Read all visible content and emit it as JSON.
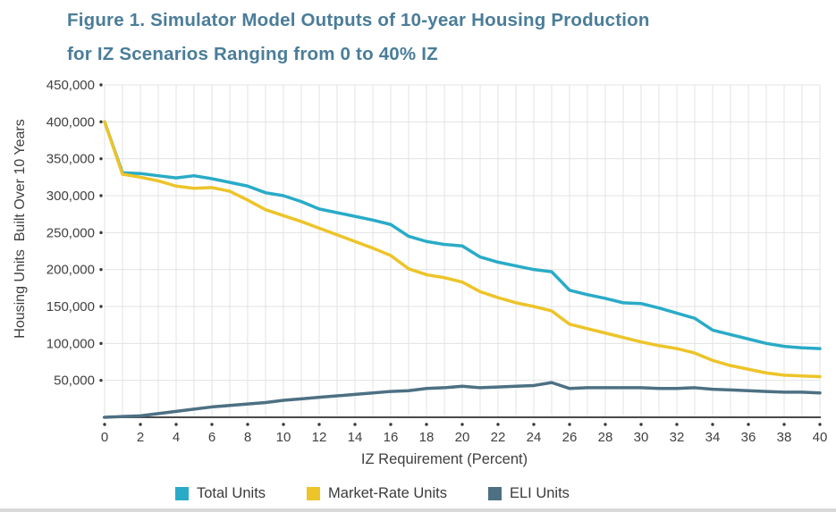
{
  "figure": {
    "title_line1": "Figure 1. Simulator Model Outputs of 10-year Housing Production",
    "title_line2": "for IZ Scenarios Ranging from 0 to 40% IZ"
  },
  "colors": {
    "title": "#4A7D99",
    "axis_text": "#404040",
    "gridline": "#E3E3E3",
    "axis_line": "#4A4A4A",
    "tick_dot": "#3A3A3A"
  },
  "chart_data": {
    "type": "line",
    "title": "Figure 1. Simulator Model Outputs of 10-year Housing Production for IZ Scenarios Ranging from 0 to 40% IZ",
    "xlabel": "IZ Requirement (Percent)",
    "ylabel": "Housing Units  Built Over 10 Years",
    "xlim": [
      0,
      40
    ],
    "ylim": [
      0,
      450000
    ],
    "x_tick_step": 2,
    "y_tick_step": 50000,
    "grid": "on",
    "legend_position": "bottom",
    "x": [
      0,
      1,
      2,
      3,
      4,
      5,
      6,
      7,
      8,
      9,
      10,
      11,
      12,
      13,
      14,
      15,
      16,
      17,
      18,
      19,
      20,
      21,
      22,
      23,
      24,
      25,
      26,
      27,
      28,
      29,
      30,
      31,
      32,
      33,
      34,
      35,
      36,
      37,
      38,
      39,
      40
    ],
    "series": [
      {
        "name": "Total Units",
        "color": "#29ABC7",
        "values": [
          400000,
          331000,
          330000,
          327000,
          324000,
          327000,
          323000,
          318000,
          313000,
          304000,
          300000,
          292000,
          282000,
          277000,
          272000,
          267000,
          261000,
          245000,
          238000,
          234000,
          232000,
          217000,
          210000,
          205000,
          200000,
          197000,
          172000,
          166000,
          161000,
          155000,
          154000,
          148000,
          141000,
          134000,
          118000,
          112000,
          106000,
          100000,
          96000,
          94000,
          93000
        ]
      },
      {
        "name": "Market-Rate Units",
        "color": "#EDC429",
        "values": [
          400000,
          329000,
          325000,
          320000,
          313000,
          310000,
          311000,
          306000,
          294000,
          281000,
          273000,
          265000,
          256000,
          247000,
          238000,
          229000,
          219000,
          201000,
          193000,
          189000,
          183000,
          170000,
          162000,
          155000,
          150000,
          144000,
          126000,
          120000,
          114000,
          108000,
          102000,
          97000,
          93000,
          87000,
          77000,
          70000,
          65000,
          60000,
          57000,
          56000,
          55000
        ]
      },
      {
        "name": "ELI Units",
        "color": "#4D7083",
        "values": [
          0,
          1000,
          2000,
          5000,
          8000,
          11000,
          14000,
          16000,
          18000,
          20000,
          23000,
          25000,
          27000,
          29000,
          31000,
          33000,
          35000,
          36000,
          39000,
          40000,
          42000,
          40000,
          41000,
          42000,
          43000,
          47000,
          39000,
          40000,
          40000,
          40000,
          40000,
          39000,
          39000,
          40000,
          38000,
          37000,
          36000,
          35000,
          34000,
          34000,
          33000
        ]
      }
    ]
  }
}
